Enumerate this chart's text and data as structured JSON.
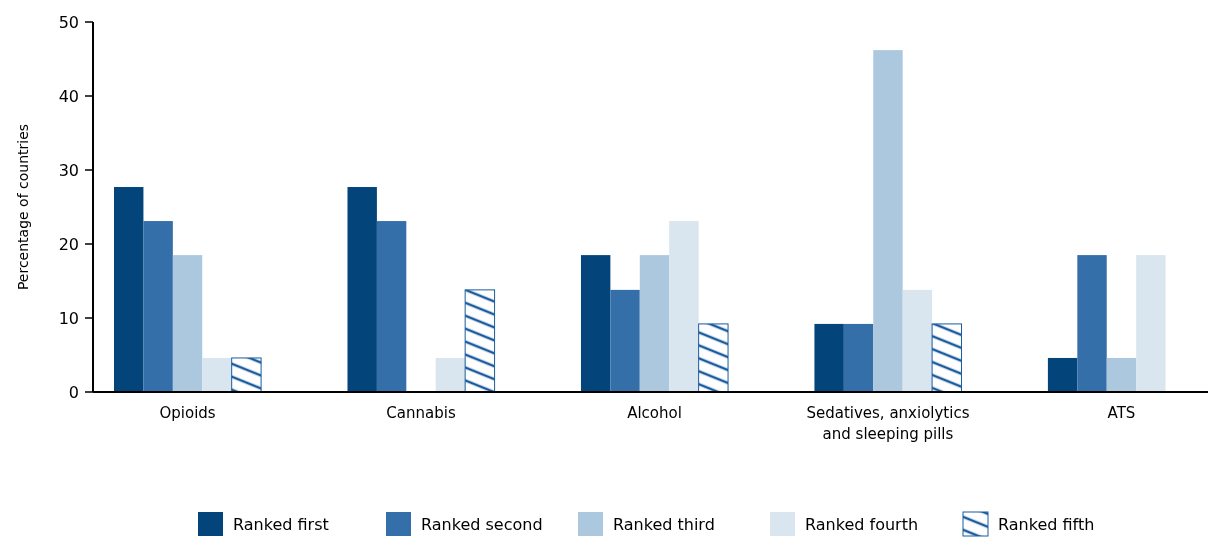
{
  "chart_data": {
    "type": "bar",
    "ylabel": "Percentage of countries",
    "categories": [
      "Opioids",
      "Cannabis",
      "Alcohol",
      "Sedatives, anxiolytics and sleeping pills",
      "ATS"
    ],
    "series": [
      {
        "name": "Ranked first",
        "color": "#03457a",
        "values": [
          27.7,
          27.7,
          18.5,
          9.2,
          4.6
        ]
      },
      {
        "name": "Ranked second",
        "color": "#356fa9",
        "values": [
          23.1,
          23.1,
          13.8,
          9.2,
          18.5
        ]
      },
      {
        "name": "Ranked third",
        "color": "#acc8de",
        "values": [
          18.5,
          0,
          18.5,
          46.2,
          4.6
        ]
      },
      {
        "name": "Ranked fourth",
        "color": "#d9e5ef",
        "values": [
          4.6,
          4.6,
          23.1,
          13.8,
          18.5
        ]
      },
      {
        "name": "Ranked fifth",
        "color": "#1a5c9e",
        "values": [
          4.6,
          13.8,
          9.2,
          9.2,
          0
        ]
      }
    ],
    "ylim": [
      0,
      50
    ],
    "yticks": [
      0,
      10,
      20,
      30,
      40,
      50
    ],
    "grid": false,
    "legend": "bottom"
  }
}
